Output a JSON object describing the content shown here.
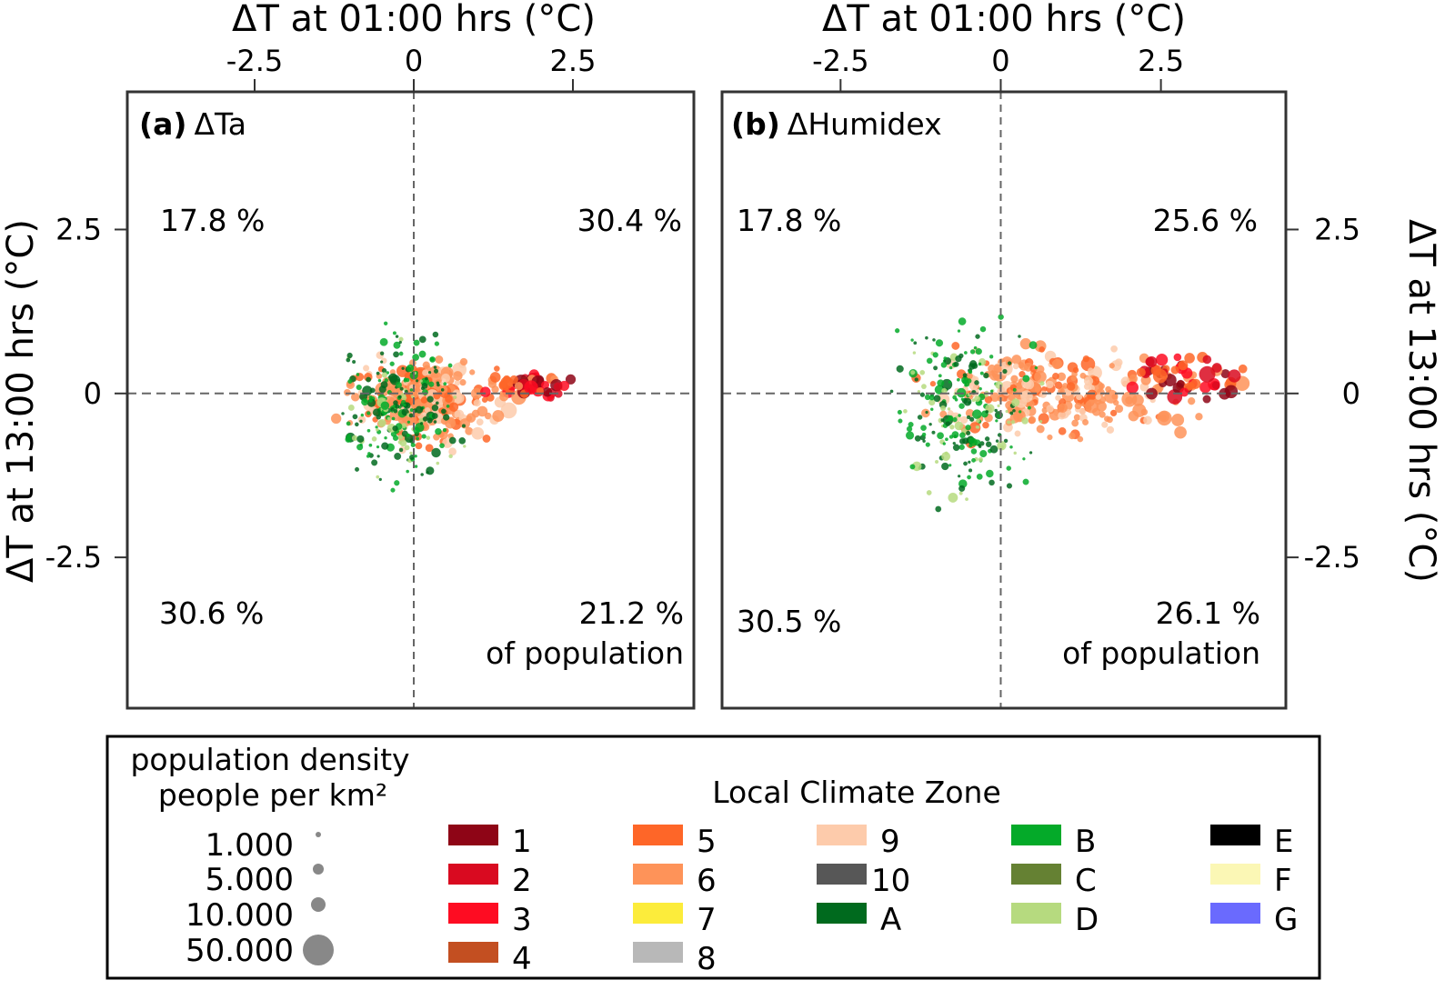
{
  "chart_data": [
    {
      "type": "scatter",
      "panel_label": "(a)",
      "title": "ΔTa",
      "xlabel": "ΔT at 01:00 hrs (°C)",
      "ylabel": "ΔT at 13:00 hrs (°C)",
      "xlabel_position": "top",
      "ylabel_position": "left",
      "xlim": [
        -4.5,
        4.4
      ],
      "ylim": [
        -4.8,
        4.6
      ],
      "xticks": [
        -2.5,
        0,
        2.5
      ],
      "yticks": [
        2.5,
        0,
        -2.5
      ],
      "xtick_labels": [
        "-2.5",
        "0",
        "2.5"
      ],
      "ytick_labels": [
        "2.5",
        "0",
        "-2.5"
      ],
      "reference_lines": {
        "x": 0,
        "y": 0,
        "style": "dashed"
      },
      "quadrant_labels": {
        "top_left": "17.8 %",
        "top_right": "30.4 %",
        "bottom_left": "30.6 %",
        "bottom_right": "21.2 %",
        "bottom_right_suffix": "of population"
      },
      "cluster": {
        "description": "dense point cloud of city locations, green (natural LCZ A/B/D) centred near x -0.5..0.5, y -1.5..1; orange/red (built LCZ 1-6) trailing right along y≈0 up to x≈2.6",
        "green_x_range": [
          -1.5,
          1.0
        ],
        "green_y_range": [
          -1.7,
          1.3
        ],
        "orange_x_range": [
          -1.3,
          1.8
        ],
        "orange_y_range": [
          -1.0,
          0.7
        ],
        "red_x_range": [
          1.0,
          2.6
        ],
        "red_y_range": [
          -0.2,
          0.4
        ]
      }
    },
    {
      "type": "scatter",
      "panel_label": "(b)",
      "title": "ΔHumidex",
      "xlabel": "ΔT at 01:00 hrs (°C)",
      "ylabel": "ΔT at 13:00 hrs (°C)",
      "xlabel_position": "top",
      "ylabel_position": "right",
      "xlim": [
        -4.35,
        4.45
      ],
      "ylim": [
        -4.8,
        4.6
      ],
      "xticks": [
        -2.5,
        0,
        2.5
      ],
      "yticks": [
        2.5,
        0,
        -2.5
      ],
      "xtick_labels": [
        "-2.5",
        "0",
        "2.5"
      ],
      "ytick_labels": [
        "2.5",
        "0",
        "-2.5"
      ],
      "reference_lines": {
        "x": 0,
        "y": 0,
        "style": "dashed"
      },
      "quadrant_labels": {
        "top_left": "17.8 %",
        "top_right": "25.6 %",
        "bottom_left": "30.5 %",
        "bottom_right": "26.1 %",
        "bottom_right_suffix": "of population"
      },
      "cluster": {
        "description": "green points centred near x -1..0.3, y -2..1.3; orange/red points extend along y≈0 out to x≈4.3",
        "green_x_range": [
          -2.0,
          0.9
        ],
        "green_y_range": [
          -2.1,
          1.4
        ],
        "orange_x_range": [
          -1.8,
          3.5
        ],
        "orange_y_range": [
          -0.9,
          0.9
        ],
        "red_x_range": [
          1.5,
          4.3
        ],
        "red_y_range": [
          -0.3,
          0.8
        ]
      }
    }
  ],
  "legend": {
    "size_title_line1": "population density",
    "size_title_line2": "people per km²",
    "size_color": "#888888",
    "sizes": [
      {
        "label": "1.000",
        "value": 1000
      },
      {
        "label": "5.000",
        "value": 5000
      },
      {
        "label": "10.000",
        "value": 10000
      },
      {
        "label": "50.000",
        "value": 50000
      }
    ],
    "lcz_title": "Local Climate Zone",
    "lcz": [
      {
        "label": "1",
        "color": "#8e0516"
      },
      {
        "label": "2",
        "color": "#d90a20"
      },
      {
        "label": "3",
        "color": "#fe0c22"
      },
      {
        "label": "4",
        "color": "#c34f21"
      },
      {
        "label": "5",
        "color": "#fe6628"
      },
      {
        "label": "6",
        "color": "#fe9359"
      },
      {
        "label": "7",
        "color": "#fcec3b"
      },
      {
        "label": "8",
        "color": "#b8b8b8"
      },
      {
        "label": "9",
        "color": "#fdcbab"
      },
      {
        "label": "10",
        "color": "#575757"
      },
      {
        "label": "A",
        "color": "#006a1e"
      },
      {
        "label": "B",
        "color": "#04aa29"
      },
      {
        "label": "C",
        "color": "#658133"
      },
      {
        "label": "D",
        "color": "#b6da7f"
      },
      {
        "label": "E",
        "color": "#000000"
      },
      {
        "label": "F",
        "color": "#fbf7b5"
      },
      {
        "label": "G",
        "color": "#6a6afe"
      }
    ]
  }
}
